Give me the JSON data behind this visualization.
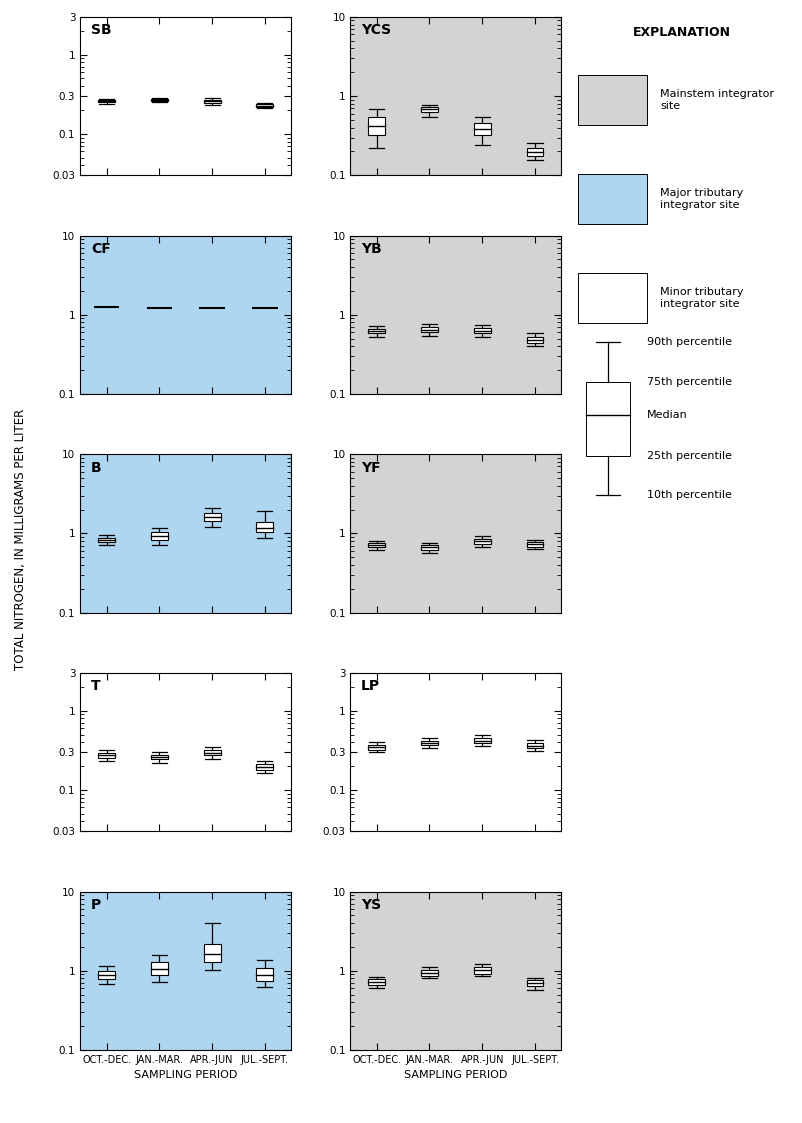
{
  "panels": [
    {
      "label": "SB",
      "color": "white",
      "ylim": [
        0.03,
        3
      ],
      "yticks": [
        0.03,
        0.1,
        0.3,
        1,
        3
      ],
      "yticklabels": [
        "0.03",
        "0.1",
        "0.3",
        "1",
        "3"
      ],
      "row": 0,
      "col": 0,
      "boxes": [
        {
          "x": 0,
          "p10": 0.24,
          "p25": 0.252,
          "median": 0.262,
          "p75": 0.27,
          "p90": 0.278
        },
        {
          "x": 1,
          "p10": 0.252,
          "p25": 0.262,
          "median": 0.27,
          "p75": 0.278,
          "p90": 0.284
        },
        {
          "x": 2,
          "p10": 0.232,
          "p25": 0.248,
          "median": 0.258,
          "p75": 0.268,
          "p90": 0.285
        },
        {
          "x": 3,
          "p10": 0.212,
          "p25": 0.22,
          "median": 0.228,
          "p75": 0.236,
          "p90": 0.244
        }
      ]
    },
    {
      "label": "YCS",
      "color": "#d3d3d3",
      "ylim": [
        0.1,
        10
      ],
      "yticks": [
        0.1,
        1,
        10
      ],
      "yticklabels": [
        "0.1",
        "1",
        "10"
      ],
      "row": 0,
      "col": 1,
      "boxes": [
        {
          "x": 0,
          "p10": 0.22,
          "p25": 0.32,
          "median": 0.42,
          "p75": 0.54,
          "p90": 0.68
        },
        {
          "x": 1,
          "p10": 0.55,
          "p25": 0.63,
          "median": 0.68,
          "p75": 0.73,
          "p90": 0.78
        },
        {
          "x": 2,
          "p10": 0.24,
          "p25": 0.32,
          "median": 0.38,
          "p75": 0.46,
          "p90": 0.55
        },
        {
          "x": 3,
          "p10": 0.155,
          "p25": 0.175,
          "median": 0.195,
          "p75": 0.22,
          "p90": 0.255
        }
      ]
    },
    {
      "label": "CF",
      "color": "#aed6f1",
      "ylim": [
        0.1,
        10
      ],
      "yticks": [
        0.1,
        1,
        10
      ],
      "yticklabels": [
        "0.1",
        "1",
        "10"
      ],
      "row": 1,
      "col": 0,
      "flat": true,
      "boxes": [
        {
          "x": 0,
          "p10": 1.25,
          "p25": 1.25,
          "median": 1.25,
          "p75": 1.25,
          "p90": 1.25
        },
        {
          "x": 1,
          "p10": 1.22,
          "p25": 1.22,
          "median": 1.22,
          "p75": 1.22,
          "p90": 1.22
        },
        {
          "x": 2,
          "p10": 1.18,
          "p25": 1.2,
          "median": 1.22,
          "p75": 1.24,
          "p90": 1.26
        },
        {
          "x": 3,
          "p10": 1.18,
          "p25": 1.2,
          "median": 1.22,
          "p75": 1.24,
          "p90": 1.26
        }
      ]
    },
    {
      "label": "YB",
      "color": "#d3d3d3",
      "ylim": [
        0.1,
        10
      ],
      "yticks": [
        0.1,
        1,
        10
      ],
      "yticklabels": [
        "0.1",
        "1",
        "10"
      ],
      "row": 1,
      "col": 1,
      "boxes": [
        {
          "x": 0,
          "p10": 0.52,
          "p25": 0.58,
          "median": 0.62,
          "p75": 0.67,
          "p90": 0.72
        },
        {
          "x": 1,
          "p10": 0.54,
          "p25": 0.6,
          "median": 0.64,
          "p75": 0.7,
          "p90": 0.76
        },
        {
          "x": 2,
          "p10": 0.52,
          "p25": 0.58,
          "median": 0.63,
          "p75": 0.69,
          "p90": 0.75
        },
        {
          "x": 3,
          "p10": 0.4,
          "p25": 0.44,
          "median": 0.48,
          "p75": 0.53,
          "p90": 0.58
        }
      ]
    },
    {
      "label": "B",
      "color": "#aed6f1",
      "ylim": [
        0.1,
        10
      ],
      "yticks": [
        0.1,
        1,
        10
      ],
      "yticklabels": [
        "0.1",
        "1",
        "10"
      ],
      "row": 2,
      "col": 0,
      "boxes": [
        {
          "x": 0,
          "p10": 0.72,
          "p25": 0.77,
          "median": 0.82,
          "p75": 0.88,
          "p90": 0.95
        },
        {
          "x": 1,
          "p10": 0.72,
          "p25": 0.82,
          "median": 0.92,
          "p75": 1.05,
          "p90": 1.18
        },
        {
          "x": 2,
          "p10": 1.22,
          "p25": 1.45,
          "median": 1.6,
          "p75": 1.82,
          "p90": 2.1
        },
        {
          "x": 3,
          "p10": 0.88,
          "p25": 1.05,
          "median": 1.18,
          "p75": 1.38,
          "p90": 1.9
        }
      ]
    },
    {
      "label": "YF",
      "color": "#d3d3d3",
      "ylim": [
        0.1,
        10
      ],
      "yticks": [
        0.1,
        1,
        10
      ],
      "yticklabels": [
        "0.1",
        "1",
        "10"
      ],
      "row": 2,
      "col": 1,
      "boxes": [
        {
          "x": 0,
          "p10": 0.62,
          "p25": 0.67,
          "median": 0.72,
          "p75": 0.76,
          "p90": 0.8
        },
        {
          "x": 1,
          "p10": 0.57,
          "p25": 0.62,
          "median": 0.67,
          "p75": 0.72,
          "p90": 0.76
        },
        {
          "x": 2,
          "p10": 0.68,
          "p25": 0.74,
          "median": 0.8,
          "p75": 0.86,
          "p90": 0.92
        },
        {
          "x": 3,
          "p10": 0.64,
          "p25": 0.68,
          "median": 0.73,
          "p75": 0.78,
          "p90": 0.83
        }
      ]
    },
    {
      "label": "T",
      "color": "white",
      "ylim": [
        0.03,
        3
      ],
      "yticks": [
        0.03,
        0.1,
        0.3,
        1,
        3
      ],
      "yticklabels": [
        "0.03",
        "0.1",
        "0.3",
        "1",
        "3"
      ],
      "row": 3,
      "col": 0,
      "boxes": [
        {
          "x": 0,
          "p10": 0.23,
          "p25": 0.255,
          "median": 0.272,
          "p75": 0.292,
          "p90": 0.315
        },
        {
          "x": 1,
          "p10": 0.218,
          "p25": 0.242,
          "median": 0.26,
          "p75": 0.278,
          "p90": 0.298
        },
        {
          "x": 2,
          "p10": 0.245,
          "p25": 0.272,
          "median": 0.295,
          "p75": 0.32,
          "p90": 0.348
        },
        {
          "x": 3,
          "p10": 0.162,
          "p25": 0.178,
          "median": 0.192,
          "p75": 0.21,
          "p90": 0.23
        }
      ]
    },
    {
      "label": "LP",
      "color": "white",
      "ylim": [
        0.03,
        3
      ],
      "yticks": [
        0.03,
        0.1,
        0.3,
        1,
        3
      ],
      "yticklabels": [
        "0.03",
        "0.1",
        "0.3",
        "1",
        "3"
      ],
      "row": 3,
      "col": 1,
      "boxes": [
        {
          "x": 0,
          "p10": 0.298,
          "p25": 0.322,
          "median": 0.345,
          "p75": 0.372,
          "p90": 0.4
        },
        {
          "x": 1,
          "p10": 0.338,
          "p25": 0.365,
          "median": 0.39,
          "p75": 0.42,
          "p90": 0.452
        },
        {
          "x": 2,
          "p10": 0.36,
          "p25": 0.39,
          "median": 0.42,
          "p75": 0.455,
          "p90": 0.495
        },
        {
          "x": 3,
          "p10": 0.31,
          "p25": 0.338,
          "median": 0.362,
          "p75": 0.392,
          "p90": 0.425
        }
      ]
    },
    {
      "label": "P",
      "color": "#aed6f1",
      "ylim": [
        0.1,
        10
      ],
      "yticks": [
        0.1,
        1,
        10
      ],
      "yticklabels": [
        "0.1",
        "1",
        "10"
      ],
      "row": 4,
      "col": 0,
      "boxes": [
        {
          "x": 0,
          "p10": 0.68,
          "p25": 0.78,
          "median": 0.88,
          "p75": 1.0,
          "p90": 1.15
        },
        {
          "x": 1,
          "p10": 0.72,
          "p25": 0.88,
          "median": 1.05,
          "p75": 1.28,
          "p90": 1.6
        },
        {
          "x": 2,
          "p10": 1.02,
          "p25": 1.3,
          "median": 1.65,
          "p75": 2.2,
          "p90": 4.0
        },
        {
          "x": 3,
          "p10": 0.62,
          "p25": 0.75,
          "median": 0.88,
          "p75": 1.08,
          "p90": 1.35
        }
      ]
    },
    {
      "label": "YS",
      "color": "#d3d3d3",
      "ylim": [
        0.1,
        10
      ],
      "yticks": [
        0.1,
        1,
        10
      ],
      "yticklabels": [
        "0.1",
        "1",
        "10"
      ],
      "row": 4,
      "col": 1,
      "boxes": [
        {
          "x": 0,
          "p10": 0.6,
          "p25": 0.66,
          "median": 0.72,
          "p75": 0.78,
          "p90": 0.84
        },
        {
          "x": 1,
          "p10": 0.8,
          "p25": 0.87,
          "median": 0.94,
          "p75": 1.02,
          "p90": 1.1
        },
        {
          "x": 2,
          "p10": 0.85,
          "p25": 0.92,
          "median": 1.02,
          "p75": 1.12,
          "p90": 1.22
        },
        {
          "x": 3,
          "p10": 0.58,
          "p25": 0.64,
          "median": 0.7,
          "p75": 0.76,
          "p90": 0.82
        }
      ]
    }
  ],
  "seasons": [
    "OCT.-DEC.",
    "JAN.-MAR.",
    "APR.-JUN",
    "JUL.-SEPT."
  ],
  "xlabel": "SAMPLING PERIOD",
  "ylabel": "TOTAL NITROGEN, IN MILLIGRAMS PER LITER",
  "box_width": 0.32,
  "colors": {
    "mainstem": "#d3d3d3",
    "major": "#aed6f1",
    "minor": "white"
  },
  "legend_items": [
    {
      "color": "#d3d3d3",
      "label": "Mainstem integrator\nsite"
    },
    {
      "color": "#aed6f1",
      "label": "Major tributary\nintegrator site"
    },
    {
      "color": "white",
      "label": "Minor tributary\nintegrator site"
    }
  ],
  "percentile_labels": [
    "90th percentile",
    "75th percentile",
    "Median",
    "25th percentile",
    "10th percentile"
  ]
}
